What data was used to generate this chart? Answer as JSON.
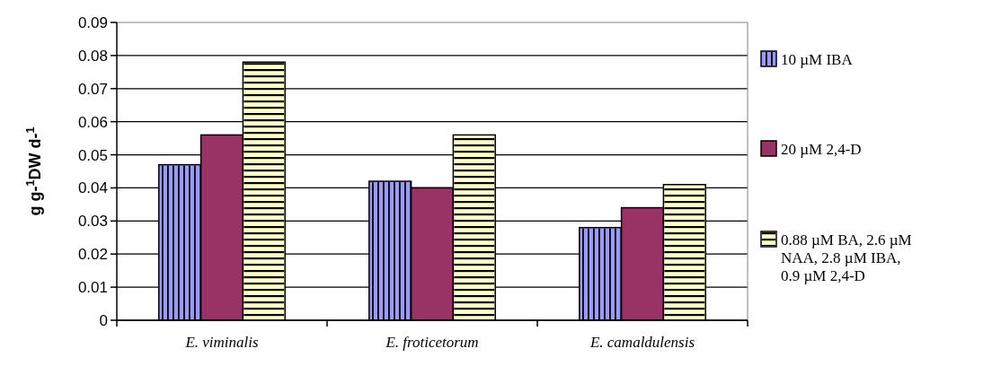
{
  "chart_data": {
    "type": "bar",
    "ylabel": "g g-$^{1}$DW d-$^{1}$",
    "categories": [
      "E. viminalis",
      "E. froticetorum",
      "E. camaldulensis"
    ],
    "series": [
      {
        "name": "10 µM IBA",
        "color": "#9999ff",
        "values": [
          0.047,
          0.042,
          0.028
        ]
      },
      {
        "name": "20 µM 2,4-D",
        "color": "#993366",
        "values": [
          0.056,
          0.04,
          0.034
        ]
      },
      {
        "name": "0.88 µM BA, 2.6 µM NAA, 2.8 µM IBA, 0.9 µM 2,4-D",
        "color": "#ffffcc",
        "values": [
          0.078,
          0.056,
          0.041
        ]
      }
    ],
    "ylim": [
      0,
      0.09
    ],
    "yticks": [
      0,
      0.01,
      0.02,
      0.03,
      0.04,
      0.05,
      0.06,
      0.07,
      0.08,
      0.09
    ],
    "grid": "y",
    "legend": "right"
  }
}
